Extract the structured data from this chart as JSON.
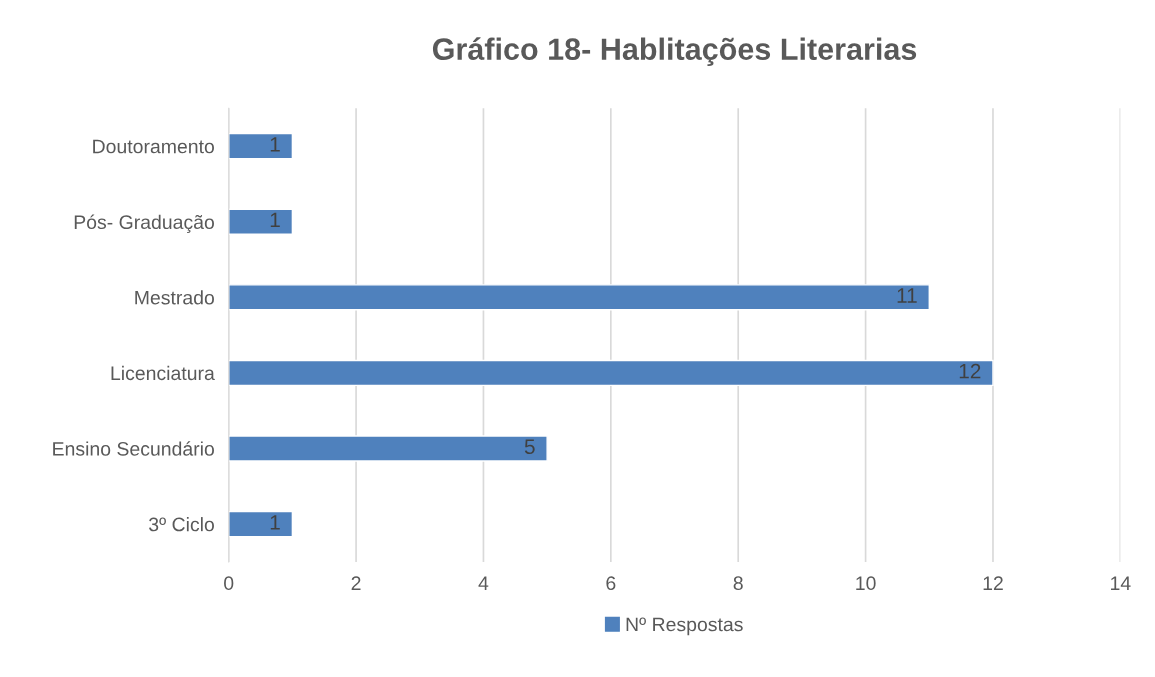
{
  "chart_data": {
    "type": "bar",
    "orientation": "horizontal",
    "title": "Gráfico 18- Hablitações Literarias",
    "categories": [
      "Doutoramento",
      "Pós- Graduação",
      "Mestrado",
      "Licenciatura",
      "Ensino Secundário",
      "3º Ciclo"
    ],
    "series": [
      {
        "name": "Nº Respostas",
        "color": "#4f81bd",
        "values": [
          1,
          1,
          11,
          12,
          5,
          1
        ]
      }
    ],
    "xlim": [
      0,
      14
    ],
    "xticks": [
      0,
      2,
      4,
      6,
      8,
      10,
      12,
      14
    ],
    "grid": "x",
    "legend": "bottom",
    "data_labels": true
  }
}
